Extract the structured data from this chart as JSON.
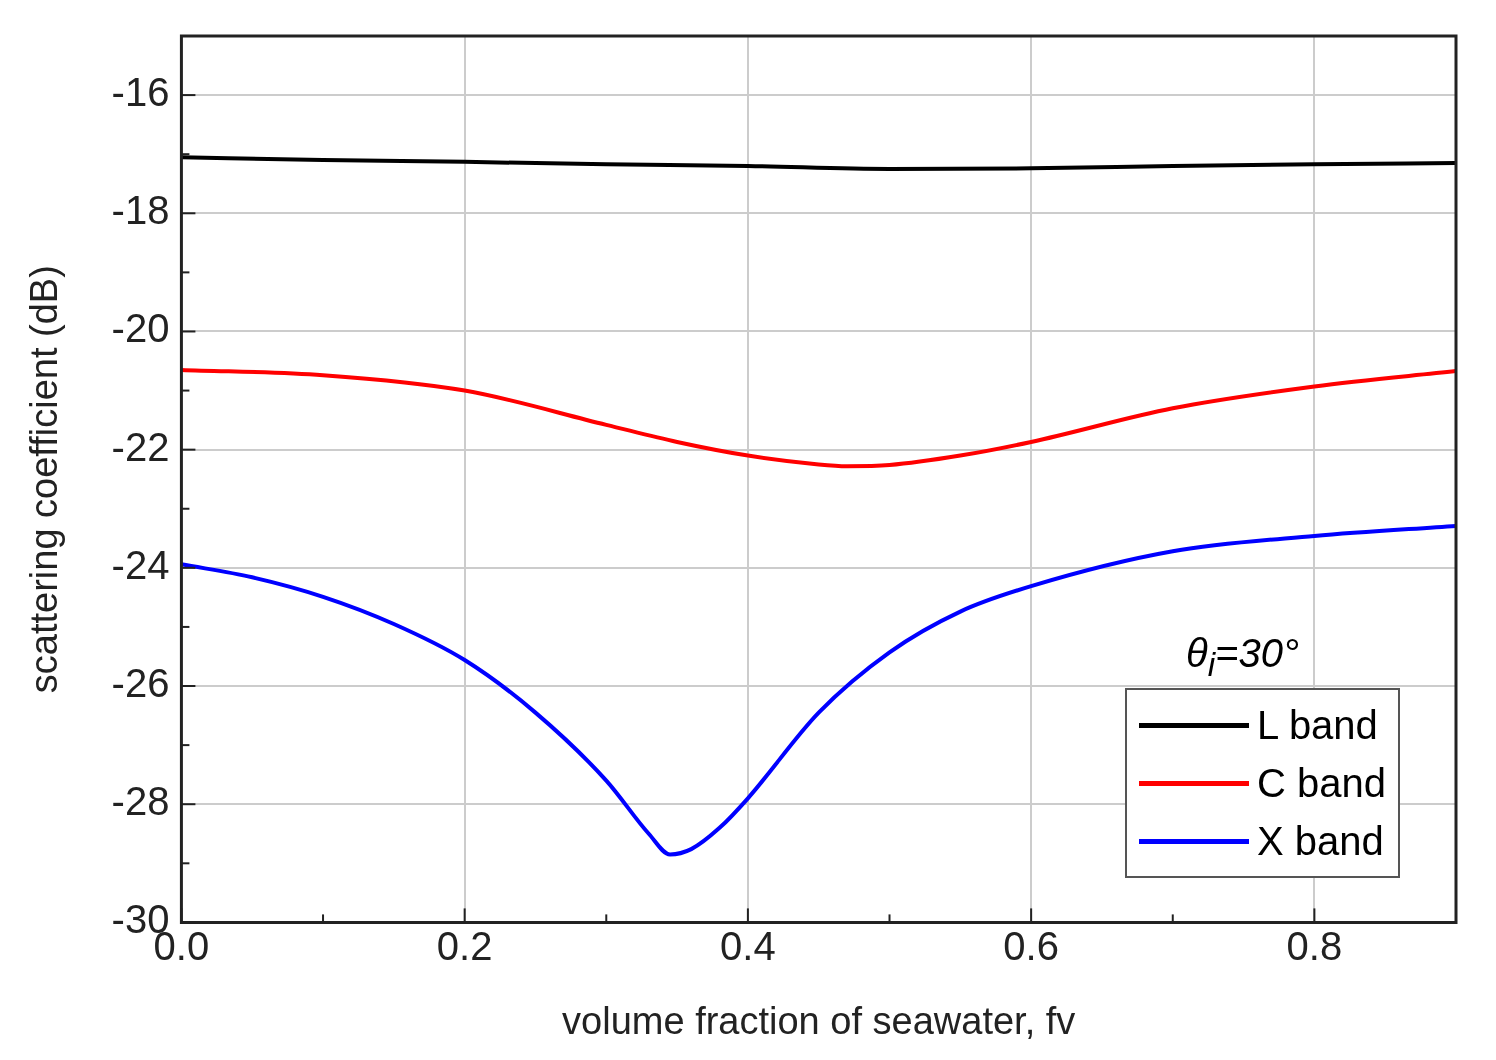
{
  "chart_data": {
    "type": "line",
    "xlabel": "volume fraction of seawater, fv",
    "ylabel": "scattering coefficient (dB)",
    "annotations": [
      "θ$_{i}$=30°"
    ],
    "xlim": [
      0,
      0.9
    ],
    "xticks": [
      {
        "value": 0,
        "label": "0.0"
      },
      0.2,
      0.4,
      0.6,
      0.8
    ],
    "ylim": [
      -30,
      -15
    ],
    "yticks": [
      -30,
      -28,
      -26,
      -24,
      -22,
      -20,
      -18,
      -16
    ],
    "grid": true,
    "legend": "bottom right",
    "marker": "none",
    "line_style": "solid",
    "series": [
      {
        "name": "L band",
        "color": "#000000",
        "x": [
          0,
          0.1,
          0.2,
          0.3,
          0.4,
          0.5,
          0.6,
          0.7,
          0.8,
          0.9
        ],
        "values": [
          -17.05,
          -17.1,
          -17.13,
          -17.17,
          -17.2,
          -17.25,
          -17.24,
          -17.2,
          -17.17,
          -17.15
        ]
      },
      {
        "name": "C band",
        "color": "#ff0000",
        "x": [
          0,
          0.1,
          0.2,
          0.3,
          0.35,
          0.4,
          0.45,
          0.47,
          0.5,
          0.55,
          0.6,
          0.7,
          0.8,
          0.9
        ],
        "values": [
          -20.65,
          -20.74,
          -21.0,
          -21.58,
          -21.87,
          -22.1,
          -22.25,
          -22.28,
          -22.26,
          -22.1,
          -21.87,
          -21.3,
          -20.93,
          -20.67
        ]
      },
      {
        "name": "X band",
        "color": "#0000ff",
        "x": [
          0,
          0.05,
          0.1,
          0.15,
          0.2,
          0.25,
          0.3,
          0.33,
          0.345,
          0.36,
          0.38,
          0.4,
          0.45,
          0.5,
          0.55,
          0.6,
          0.7,
          0.8,
          0.9
        ],
        "values": [
          -23.94,
          -24.16,
          -24.49,
          -24.95,
          -25.56,
          -26.45,
          -27.6,
          -28.5,
          -28.85,
          -28.76,
          -28.4,
          -27.9,
          -26.45,
          -25.43,
          -24.74,
          -24.31,
          -23.72,
          -23.46,
          -23.29
        ]
      }
    ]
  }
}
